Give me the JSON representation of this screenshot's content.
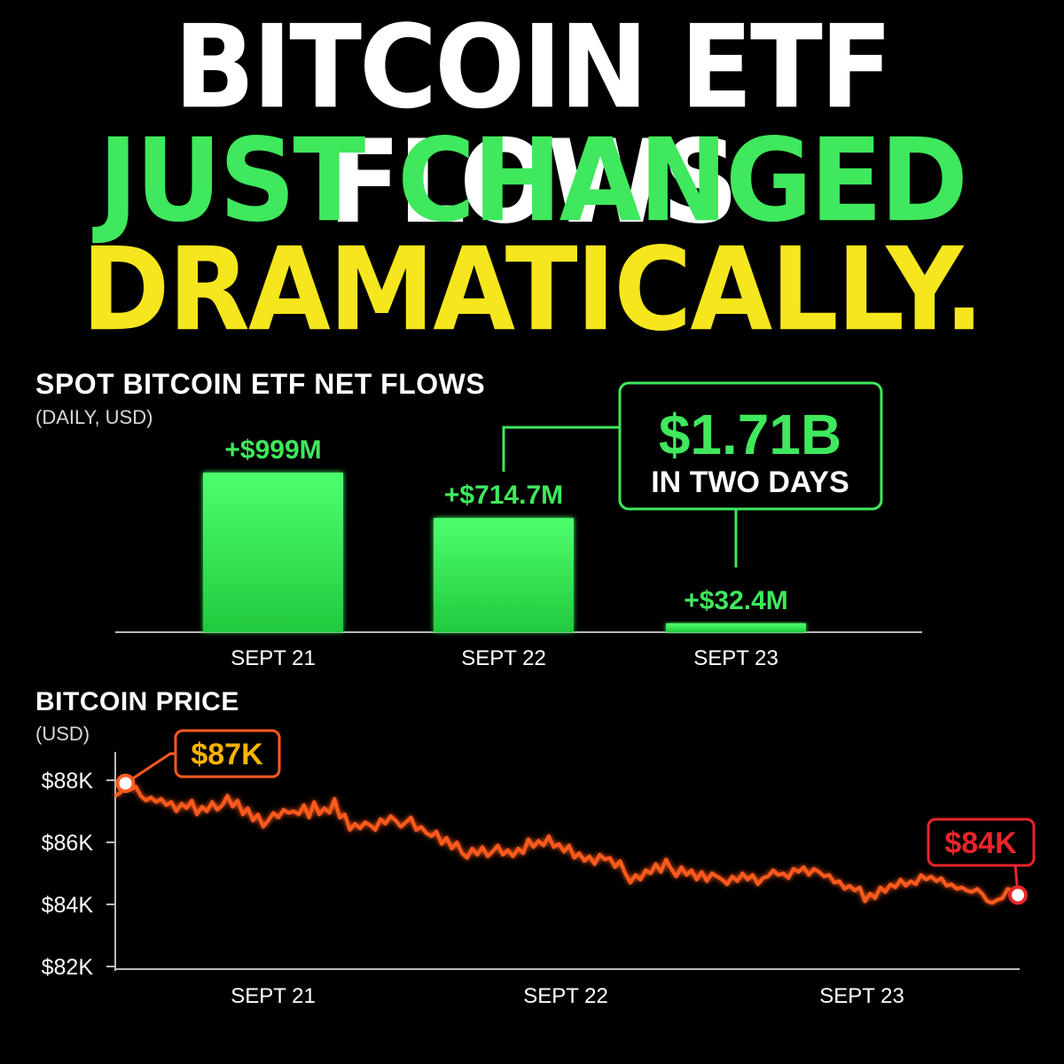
{
  "headline": {
    "line1": "BITCOIN ETF FLOWS",
    "line2": "JUST CHANGED",
    "line3": "DRAMATICALLY."
  },
  "colors": {
    "white": "#ffffff",
    "green": "#3fe85c",
    "yellow": "#f5e61e",
    "orange": "#ff5a1f",
    "red": "#e8252a",
    "amber": "#ffb300"
  },
  "chart_data": [
    {
      "type": "bar",
      "title": "SPOT BITCOIN ETF NET FLOWS",
      "subtitle": "(DAILY, USD)",
      "categories": [
        "SEPT 21",
        "SEPT 22",
        "SEPT 23"
      ],
      "values": [
        999,
        714.7,
        32.4
      ],
      "data_labels": [
        "+$999M",
        "+$714.7M",
        "+$32.4M"
      ],
      "annotation": {
        "value": "$1.71B",
        "text": "IN TWO DAYS"
      },
      "grid": false
    },
    {
      "type": "line",
      "title": "BITCOIN PRICE",
      "subtitle": "(USD)",
      "x_ticks": [
        "SEPT 21",
        "SEPT 22",
        "SEPT 23"
      ],
      "y_ticks": [
        "$88K",
        "$86K",
        "$84K",
        "$82K"
      ],
      "ylim": [
        82000,
        89500
      ],
      "start_label": "$87K",
      "end_label": "$84K",
      "values": [
        87500,
        87600,
        87900,
        87700,
        87800,
        87500,
        87350,
        87450,
        87300,
        87400,
        87200,
        87300,
        87000,
        87250,
        87100,
        87350,
        86900,
        87150,
        87000,
        87300,
        87050,
        87200,
        87500,
        87150,
        87350,
        86900,
        87100,
        86700,
        86900,
        86500,
        86700,
        86950,
        86800,
        87050,
        86950,
        87000,
        86900,
        87200,
        86800,
        87300,
        86900,
        87100,
        86950,
        87400,
        86800,
        86900,
        86400,
        86600,
        86450,
        86650,
        86550,
        86400,
        86750,
        86600,
        86850,
        86700,
        86500,
        86650,
        86800,
        86400,
        86500,
        86300,
        86200,
        86350,
        85950,
        86150,
        85800,
        86000,
        85650,
        85500,
        85800,
        85600,
        85850,
        85550,
        85700,
        85900,
        85600,
        85750,
        85550,
        85800,
        85650,
        86100,
        85850,
        86050,
        85900,
        86200,
        85850,
        85950,
        85700,
        85900,
        85500,
        85650,
        85400,
        85550,
        85300,
        85600,
        85450,
        85500,
        85200,
        85400,
        85000,
        84700,
        84950,
        84800,
        85100,
        85000,
        85300,
        85050,
        85450,
        85150,
        84900,
        85200,
        84950,
        85100,
        84800,
        85050,
        84750,
        85000,
        84900,
        84800,
        84650,
        84900,
        84750,
        85000,
        84800,
        84950,
        84650,
        84850,
        84900,
        85100,
        84950,
        85000,
        84850,
        85150,
        85050,
        85200,
        84950,
        85150,
        85050,
        84900,
        84950,
        84700,
        84750,
        84500,
        84600,
        84450,
        84550,
        84100,
        84350,
        84200,
        84550,
        84400,
        84650,
        84550,
        84800,
        84600,
        84750,
        84650,
        84950,
        84800,
        84900,
        84750,
        84850,
        84600,
        84650,
        84500,
        84550,
        84450,
        84400,
        84500,
        84350,
        84100,
        84050,
        84150,
        84200,
        84500,
        84450,
        84300
      ]
    }
  ]
}
